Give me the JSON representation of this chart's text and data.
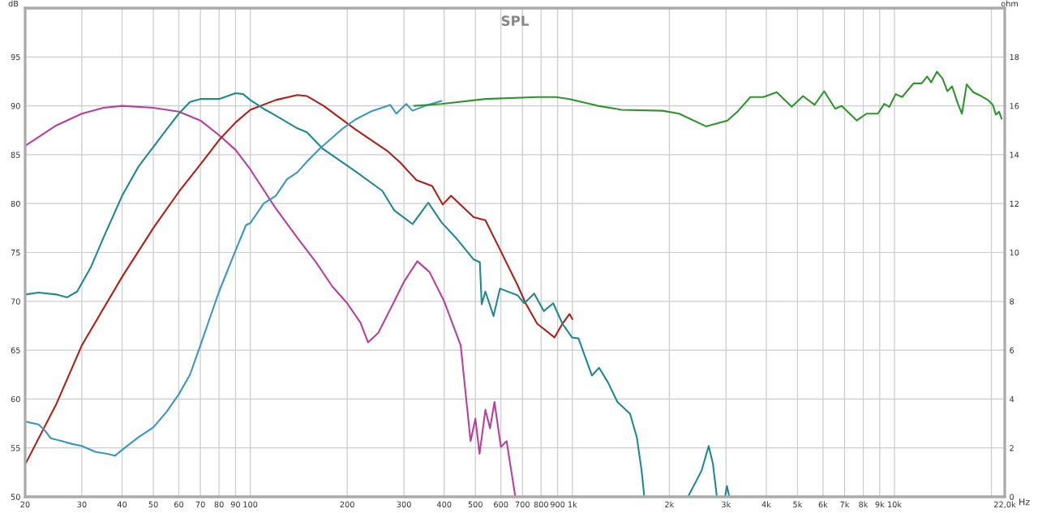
{
  "chart_data": {
    "type": "line",
    "title": "SPL",
    "xlabel": "Hz",
    "ylabel": "dB",
    "y2label": "ohm",
    "log": "x",
    "grid": true,
    "marker": "none",
    "line_style": "solid",
    "xlim": [
      20,
      22000
    ],
    "ylim": [
      50,
      100
    ],
    "y2lim": [
      0,
      20
    ],
    "xticks": [
      20,
      30,
      40,
      50,
      60,
      70,
      80,
      90,
      100,
      200,
      300,
      400,
      500,
      600,
      700,
      800,
      900,
      {
        "value": 1000,
        "label": "1k"
      },
      {
        "value": 2000,
        "label": "2k"
      },
      {
        "value": 3000,
        "label": "3k"
      },
      {
        "value": 4000,
        "label": "4k"
      },
      {
        "value": 5000,
        "label": "5k"
      },
      {
        "value": 6000,
        "label": "6k"
      },
      {
        "value": 7000,
        "label": "7k"
      },
      {
        "value": 8000,
        "label": "8k"
      },
      {
        "value": 9000,
        "label": "9k"
      },
      {
        "value": 10000,
        "label": "10k"
      },
      {
        "value": 20000,
        "label": null
      },
      {
        "value": 22000,
        "label": "22,0k"
      }
    ],
    "yticks": [
      50,
      55,
      60,
      65,
      70,
      75,
      80,
      85,
      90,
      95
    ],
    "y2ticks": [
      0,
      2,
      4,
      6,
      8,
      10,
      12,
      14,
      16,
      18
    ],
    "series": [
      {
        "color": "#b8409c",
        "x": [
          20,
          25,
          30,
          35,
          40,
          50,
          60,
          70,
          80,
          90,
          100,
          120,
          140,
          160,
          180,
          200,
          220,
          232,
          250,
          280,
          300,
          330,
          360,
          400,
          450,
          483,
          500,
          515,
          537,
          555,
          573,
          600,
          625,
          665
        ],
        "values": [
          85.9,
          88,
          89.2,
          89.8,
          90.0,
          89.8,
          89.4,
          88.5,
          87,
          85.5,
          83.5,
          79.5,
          76.5,
          74,
          71.5,
          69.8,
          67.8,
          65.8,
          66.8,
          70,
          72,
          74.1,
          73,
          70,
          65.5,
          55.7,
          58,
          54.4,
          58.9,
          57,
          59.7,
          55.1,
          55.7,
          50
        ]
      },
      {
        "color": "#b0201a",
        "x": [
          20,
          25,
          30,
          40,
          50,
          60,
          70,
          80,
          90,
          100,
          120,
          140,
          150,
          169,
          212,
          266,
          292,
          328,
          367,
          396,
          420,
          494,
          537,
          596,
          677,
          716,
          778,
          880,
          931,
          980,
          1000
        ],
        "values": [
          53.3,
          59.5,
          65.5,
          72.5,
          77.5,
          81.2,
          84,
          86.5,
          88.3,
          89.6,
          90.6,
          91.1,
          91,
          90,
          87.6,
          85.4,
          84.2,
          82.4,
          81.8,
          79.9,
          80.8,
          78.6,
          78.3,
          75.3,
          71.6,
          69.8,
          67.7,
          66.3,
          67.7,
          68.7,
          68.2
        ]
      },
      {
        "color": "#1f8a8c",
        "x": [
          20,
          22,
          25,
          27,
          29,
          32,
          35,
          40,
          45,
          50,
          55,
          60,
          65,
          70,
          80,
          90,
          95,
          100,
          110,
          120,
          140,
          150,
          168,
          212,
          257,
          280,
          319,
          357,
          392,
          440,
          493,
          516,
          523,
          537,
          569,
          596,
          677,
          709,
          761,
          815,
          872,
          932,
          998,
          1045,
          1150,
          1210,
          1290,
          1380,
          1510,
          1585,
          1640,
          1670,
          1700,
          2285,
          2405,
          2520,
          2650,
          2730,
          2810,
          2980,
          3020,
          3070
        ],
        "values": [
          70.7,
          70.9,
          70.7,
          70.4,
          71,
          73.5,
          76.5,
          80.8,
          83.8,
          85.8,
          87.6,
          89.2,
          90.4,
          90.7,
          90.7,
          91.3,
          91.2,
          90.6,
          89.7,
          89,
          87.7,
          87.3,
          85.6,
          83.3,
          81.3,
          79.3,
          77.9,
          80.1,
          78.1,
          76.3,
          74.3,
          74,
          69.7,
          71,
          68.5,
          71.3,
          70.6,
          69.8,
          70.8,
          69,
          69.8,
          67.7,
          66.3,
          66.2,
          62.4,
          63.2,
          61.7,
          59.7,
          58.5,
          56.1,
          52.7,
          50.2,
          null,
          50,
          51.4,
          52.7,
          55.2,
          53.4,
          50,
          50,
          51.1,
          50
        ]
      },
      {
        "color": "#3a98c0",
        "x": [
          20,
          22,
          23,
          24,
          26,
          28,
          30,
          33,
          36,
          38,
          40,
          45,
          50,
          55,
          60,
          65,
          70,
          80,
          90,
          97,
          100,
          110,
          120,
          130,
          140,
          150,
          164,
          194,
          212,
          236,
          272,
          284,
          305,
          319,
          349,
          392
        ],
        "values": [
          57.7,
          57.4,
          56.8,
          56,
          55.7,
          55.4,
          55.2,
          54.6,
          54.4,
          54.2,
          54.8,
          56.1,
          57.1,
          58.7,
          60.5,
          62.5,
          65.5,
          71,
          75.2,
          77.8,
          78,
          80,
          80.8,
          82.5,
          83.2,
          84.3,
          85.6,
          87.7,
          88.6,
          89.4,
          90.1,
          89.2,
          90.2,
          89.5,
          90,
          90.5
        ]
      },
      {
        "color": "#2e952e",
        "x": [
          323,
          392,
          537,
          778,
          890,
          979,
          1200,
          1420,
          1905,
          2145,
          2600,
          3030,
          3255,
          3570,
          3920,
          4310,
          4800,
          5200,
          5650,
          6050,
          6550,
          6850,
          7640,
          8190,
          8880,
          9300,
          9640,
          10090,
          10560,
          11460,
          12140,
          12630,
          13000,
          13540,
          14100,
          14600,
          15100,
          15740,
          16200,
          16760,
          17570,
          18600,
          19500,
          20200,
          20650,
          21130,
          21500
        ],
        "values": [
          90,
          90.2,
          90.7,
          90.9,
          90.9,
          90.7,
          90,
          89.6,
          89.5,
          89.2,
          87.9,
          88.5,
          89.4,
          90.9,
          90.9,
          91.4,
          89.9,
          91,
          90.1,
          91.5,
          89.7,
          90,
          88.5,
          89.2,
          89.2,
          90.2,
          89.9,
          91.2,
          90.9,
          92.3,
          92.3,
          93,
          92.4,
          93.5,
          92.8,
          91.5,
          92,
          90.2,
          89.2,
          92.2,
          91.4,
          91,
          90.6,
          90.1,
          89.1,
          89.4,
          88.7
        ]
      }
    ]
  }
}
